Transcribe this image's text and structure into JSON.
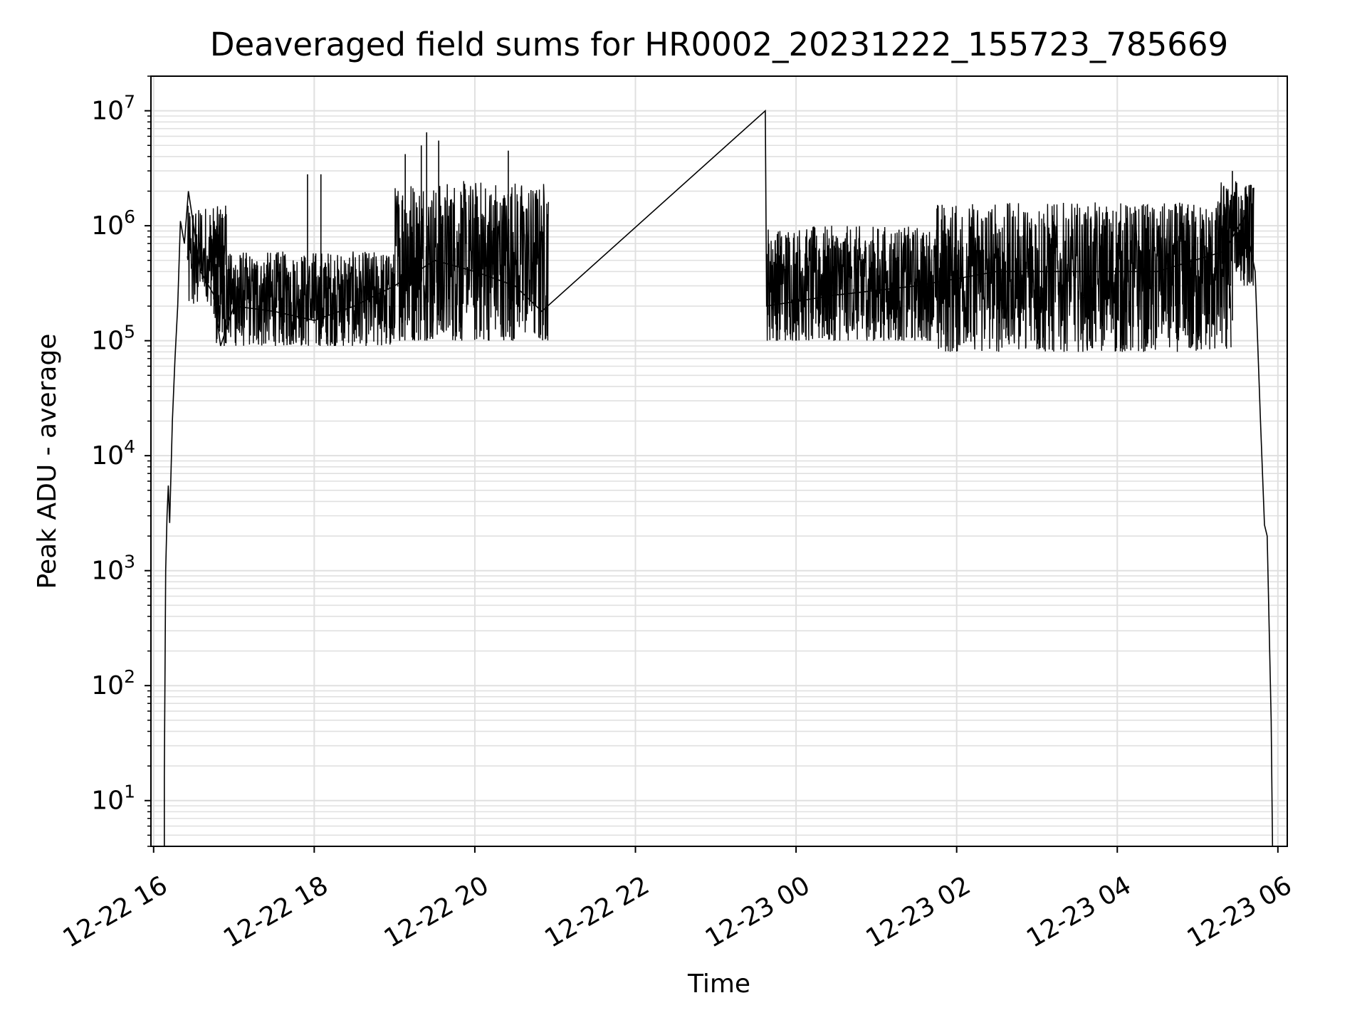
{
  "chart_data": {
    "type": "line",
    "title": "Deaveraged field sums for HR0002_20231222_155723_785669",
    "xlabel": "Time",
    "ylabel": "Peak ADU - average",
    "yscale": "log",
    "ylim": [
      4,
      20000000
    ],
    "xlim": [
      "2023-12-22 15:58",
      "2023-12-23 06:07"
    ],
    "grid": true,
    "line_color": "#000000",
    "grid_color": "#e0e0e0",
    "x_ticks": [
      {
        "t": "2023-12-22 16:00",
        "label": "12-22 16"
      },
      {
        "t": "2023-12-22 18:00",
        "label": "12-22 18"
      },
      {
        "t": "2023-12-22 20:00",
        "label": "12-22 20"
      },
      {
        "t": "2023-12-22 22:00",
        "label": "12-22 22"
      },
      {
        "t": "2023-12-23 00:00",
        "label": "12-23 00"
      },
      {
        "t": "2023-12-23 02:00",
        "label": "12-23 02"
      },
      {
        "t": "2023-12-23 04:00",
        "label": "12-23 04"
      },
      {
        "t": "2023-12-23 06:00",
        "label": "12-23 06"
      }
    ],
    "y_ticks": [
      {
        "value": 10,
        "base": "10",
        "exp": "1"
      },
      {
        "value": 100,
        "base": "10",
        "exp": "2"
      },
      {
        "value": 1000,
        "base": "10",
        "exp": "3"
      },
      {
        "value": 10000,
        "base": "10",
        "exp": "4"
      },
      {
        "value": 100000,
        "base": "10",
        "exp": "5"
      },
      {
        "value": 1000000,
        "base": "10",
        "exp": "6"
      },
      {
        "value": 10000000,
        "base": "10",
        "exp": "7"
      }
    ],
    "series": [
      {
        "segments": [
          {
            "t": "2023-12-22 16:08",
            "y": 4
          },
          {
            "t": "2023-12-22 16:08",
            "y": 16
          },
          {
            "t": "2023-12-22 16:09",
            "y": 1000
          },
          {
            "t": "2023-12-22 16:10",
            "y": 3000
          },
          {
            "t": "2023-12-22 16:11",
            "y": 5500
          },
          {
            "t": "2023-12-22 16:12",
            "y": 2600
          },
          {
            "t": "2023-12-22 16:14",
            "y": 20000
          },
          {
            "t": "2023-12-22 16:16",
            "y": 70000
          },
          {
            "t": "2023-12-22 16:18",
            "y": 200000
          },
          {
            "t": "2023-12-22 16:20",
            "y": 1100000
          },
          {
            "t": "2023-12-22 16:23",
            "y": 700000
          },
          {
            "t": "2023-12-22 16:26",
            "y": 2000000
          },
          {
            "t": "2023-12-22 16:35",
            "y": 400000
          },
          {
            "t": "2023-12-22 16:45",
            "y": 250000
          },
          {
            "t": "2023-12-22 16:50",
            "y": 90000
          },
          {
            "t": "2023-12-22 17:00",
            "y": 200000
          },
          {
            "t": "2023-12-22 17:30",
            "y": 180000
          },
          {
            "t": "2023-12-22 18:00",
            "y": 150000
          },
          {
            "t": "2023-12-22 18:30",
            "y": 200000
          },
          {
            "t": "2023-12-22 19:00",
            "y": 300000
          },
          {
            "t": "2023-12-22 19:30",
            "y": 500000
          },
          {
            "t": "2023-12-22 20:00",
            "y": 400000
          },
          {
            "t": "2023-12-22 20:30",
            "y": 300000
          },
          {
            "t": "2023-12-22 20:50",
            "y": 180000
          },
          {
            "t": "2023-12-22 23:37",
            "y": 10000000
          },
          {
            "t": "2023-12-22 23:38",
            "y": 200000
          },
          {
            "t": "2023-12-23 00:30",
            "y": 250000
          },
          {
            "t": "2023-12-23 01:30",
            "y": 300000
          },
          {
            "t": "2023-12-23 02:30",
            "y": 400000
          },
          {
            "t": "2023-12-23 03:30",
            "y": 400000
          },
          {
            "t": "2023-12-23 04:30",
            "y": 400000
          },
          {
            "t": "2023-12-23 05:20",
            "y": 600000
          },
          {
            "t": "2023-12-23 05:35",
            "y": 1200000
          },
          {
            "t": "2023-12-23 05:43",
            "y": 400000
          },
          {
            "t": "2023-12-23 05:47",
            "y": 20000
          },
          {
            "t": "2023-12-23 05:50",
            "y": 2500
          },
          {
            "t": "2023-12-23 05:52",
            "y": 2000
          },
          {
            "t": "2023-12-23 05:55",
            "y": 50
          },
          {
            "t": "2023-12-23 05:56",
            "y": 4
          }
        ]
      }
    ],
    "noise_bands": [
      {
        "t0": "2023-12-22 16:25",
        "t1": "2023-12-22 16:55",
        "lo": 200000,
        "hi": 1500000
      },
      {
        "t0": "2023-12-22 16:45",
        "t1": "2023-12-22 19:00",
        "lo": 90000,
        "hi": 600000
      },
      {
        "t0": "2023-12-22 19:00",
        "t1": "2023-12-22 20:55",
        "lo": 100000,
        "hi": 2500000
      },
      {
        "t0": "2023-12-22 23:38",
        "t1": "2023-12-23 01:45",
        "lo": 100000,
        "hi": 1000000
      },
      {
        "t0": "2023-12-23 01:45",
        "t1": "2023-12-23 05:25",
        "lo": 80000,
        "hi": 1600000
      },
      {
        "t0": "2023-12-23 05:15",
        "t1": "2023-12-23 05:42",
        "lo": 300000,
        "hi": 2500000
      }
    ],
    "spikes": [
      {
        "t": "2023-12-22 17:55",
        "y": 2800000
      },
      {
        "t": "2023-12-22 18:05",
        "y": 2800000
      },
      {
        "t": "2023-12-22 19:08",
        "y": 4200000
      },
      {
        "t": "2023-12-22 19:20",
        "y": 5000000
      },
      {
        "t": "2023-12-22 19:24",
        "y": 6500000
      },
      {
        "t": "2023-12-22 19:33",
        "y": 5500000
      },
      {
        "t": "2023-12-22 20:25",
        "y": 4500000
      },
      {
        "t": "2023-12-23 05:26",
        "y": 3000000
      }
    ]
  }
}
